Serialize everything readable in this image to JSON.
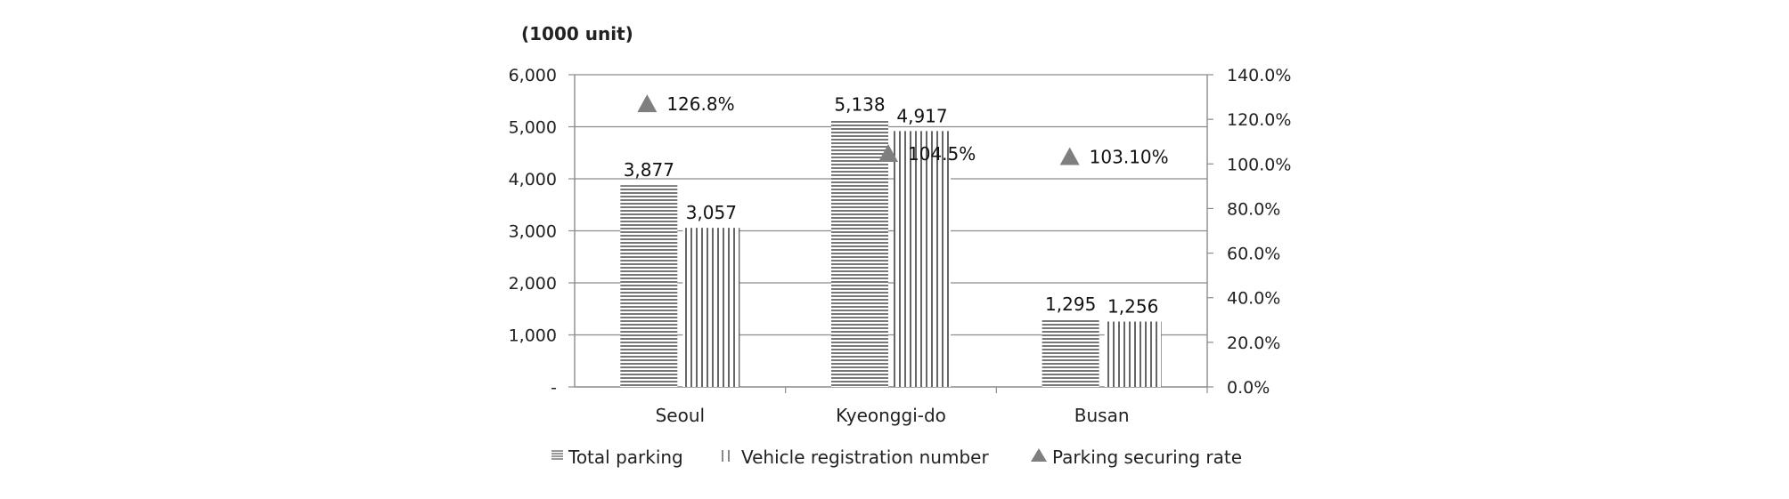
{
  "chart_data": {
    "type": "bar",
    "unit_label": "(1000 unit)",
    "categories": [
      "Seoul",
      "Kyeonggi-do",
      "Busan"
    ],
    "series": [
      {
        "name": "Total parking",
        "axis": "left",
        "values": [
          3877,
          5138,
          1295
        ],
        "labels": [
          "3,877",
          "5,138",
          "1,295"
        ],
        "pattern": "horizontal-lines"
      },
      {
        "name": "Vehicle registration number",
        "axis": "left",
        "values": [
          3057,
          4917,
          1256
        ],
        "labels": [
          "3,057",
          "4,917",
          "1,256"
        ],
        "pattern": "vertical-lines"
      },
      {
        "name": "Parking securing rate",
        "axis": "right",
        "type": "marker",
        "marker": "triangle",
        "values": [
          126.8,
          104.5,
          103.1
        ],
        "labels": [
          "126.8%",
          "104.5%",
          "103.10%"
        ],
        "color": "#7f7f7f"
      }
    ],
    "y_left": {
      "min": 0,
      "max": 6000,
      "ticks": [
        "-",
        "1,000",
        "2,000",
        "3,000",
        "4,000",
        "5,000",
        "6,000"
      ]
    },
    "y_right": {
      "min": 0,
      "max": 140,
      "ticks": [
        "0.0%",
        "20.0%",
        "40.0%",
        "60.0%",
        "80.0%",
        "100.0%",
        "120.0%",
        "140.0%"
      ]
    },
    "grid": true,
    "legend_position": "bottom",
    "colors": {
      "bar_lines": "#555555",
      "grid": "#8c8c8c",
      "marker": "#7f7f7f"
    }
  }
}
